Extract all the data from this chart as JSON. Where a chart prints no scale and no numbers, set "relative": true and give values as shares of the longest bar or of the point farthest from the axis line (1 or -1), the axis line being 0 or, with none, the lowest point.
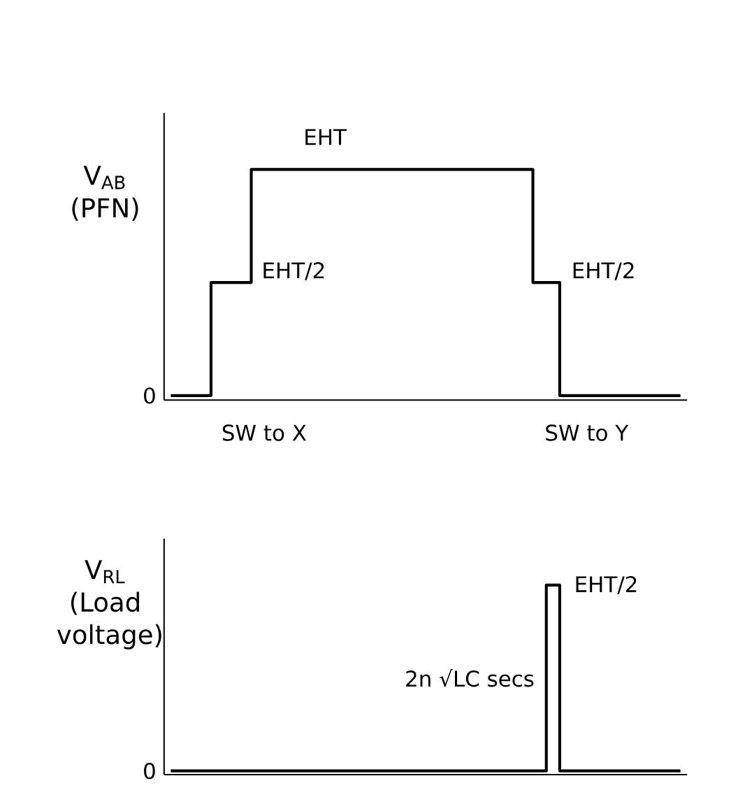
{
  "chart_data": [
    {
      "type": "step",
      "relative": true,
      "ylabel": "V$_{AB}$ (PFN)",
      "categories": [
        null,
        null,
        null,
        null,
        null,
        null,
        null,
        null,
        null,
        null,
        null,
        null,
        null,
        null,
        null,
        null,
        null,
        null,
        null,
        null,
        null,
        null,
        null,
        null,
        null,
        null,
        null,
        null,
        null,
        null,
        null,
        null,
        null,
        null,
        null,
        null,
        null,
        null,
        null
      ],
      "values": [
        0,
        0,
        0,
        0.5,
        0.5,
        0.5,
        1,
        1,
        1,
        1,
        1,
        1,
        1,
        1,
        1,
        1,
        1,
        1,
        1,
        1,
        1,
        1,
        1,
        1,
        1,
        1,
        1,
        0.5,
        0.5,
        0,
        0,
        0,
        0,
        0,
        0,
        0,
        0,
        0,
        0
      ],
      "color": "#000000",
      "annotations": [
        "EHT",
        "EHT/2",
        "EHT/2",
        "SW to X",
        "SW to Y",
        "0"
      ]
    },
    {
      "type": "step",
      "relative": true,
      "ylabel": "V$_{RL}$ (Load voltage)",
      "categories": [
        null,
        null,
        null,
        null,
        null,
        null,
        null,
        null,
        null,
        null,
        null,
        null,
        null,
        null,
        null,
        null,
        null,
        null,
        null,
        null,
        null,
        null,
        null,
        null,
        null,
        null,
        null,
        null,
        null,
        null,
        null,
        null,
        null,
        null,
        null,
        null,
        null,
        null,
        null
      ],
      "values": [
        0,
        0,
        0,
        0,
        0,
        0,
        0,
        0,
        0,
        0,
        0,
        0,
        0,
        0,
        0,
        0,
        0,
        0,
        0,
        0,
        0,
        0,
        0,
        0,
        0,
        0,
        0,
        0,
        1,
        0,
        0,
        0,
        0,
        0,
        0,
        0,
        0,
        0,
        0
      ],
      "color": "#000000",
      "annotations": [
        "EHT/2",
        "2n √LC secs",
        "0"
      ]
    }
  ]
}
